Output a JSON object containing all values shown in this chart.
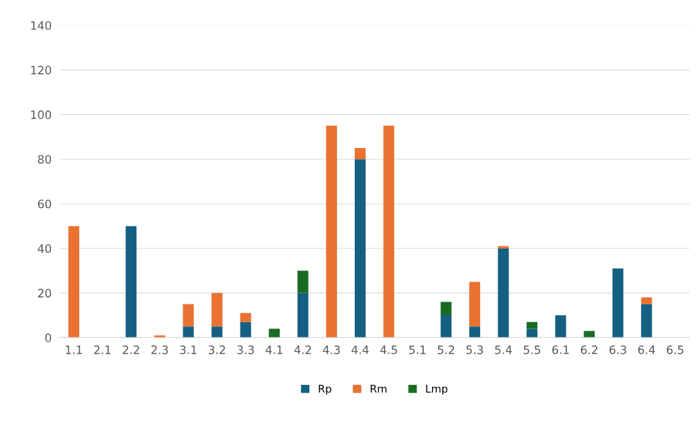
{
  "chart_data": {
    "type": "bar",
    "stacked": true,
    "categories": [
      "1.1",
      "2.1",
      "2.2",
      "2.3",
      "3.1",
      "3.2",
      "3.3",
      "4.1",
      "4.2",
      "4.3",
      "4.4",
      "4.5",
      "5.1",
      "5.2",
      "5.3",
      "5.4",
      "5.5",
      "6.1",
      "6.2",
      "6.3",
      "6.4",
      "6.5"
    ],
    "series": [
      {
        "name": "Rp",
        "color": "#156082",
        "values": [
          0,
          0,
          50,
          0,
          5,
          5,
          7,
          0,
          20,
          0,
          80,
          0,
          0,
          10,
          5,
          40,
          4,
          10,
          0,
          31,
          15,
          0
        ]
      },
      {
        "name": "Rm",
        "color": "#e97132",
        "values": [
          50,
          0,
          0,
          1,
          10,
          15,
          4,
          0,
          0,
          95,
          5,
          95,
          0,
          0,
          20,
          1,
          0,
          0,
          0,
          0,
          3,
          0
        ]
      },
      {
        "name": "Lmp",
        "color": "#196b24",
        "values": [
          0,
          0,
          0,
          0,
          0,
          0,
          0,
          4,
          10,
          0,
          0,
          0,
          0,
          6,
          0,
          0,
          3,
          0,
          3,
          0,
          0,
          0
        ]
      }
    ],
    "ylim": [
      0,
      140
    ],
    "yticks": [
      0,
      20,
      40,
      60,
      80,
      100,
      120,
      140
    ],
    "grid": "y",
    "legend": "bottom"
  }
}
